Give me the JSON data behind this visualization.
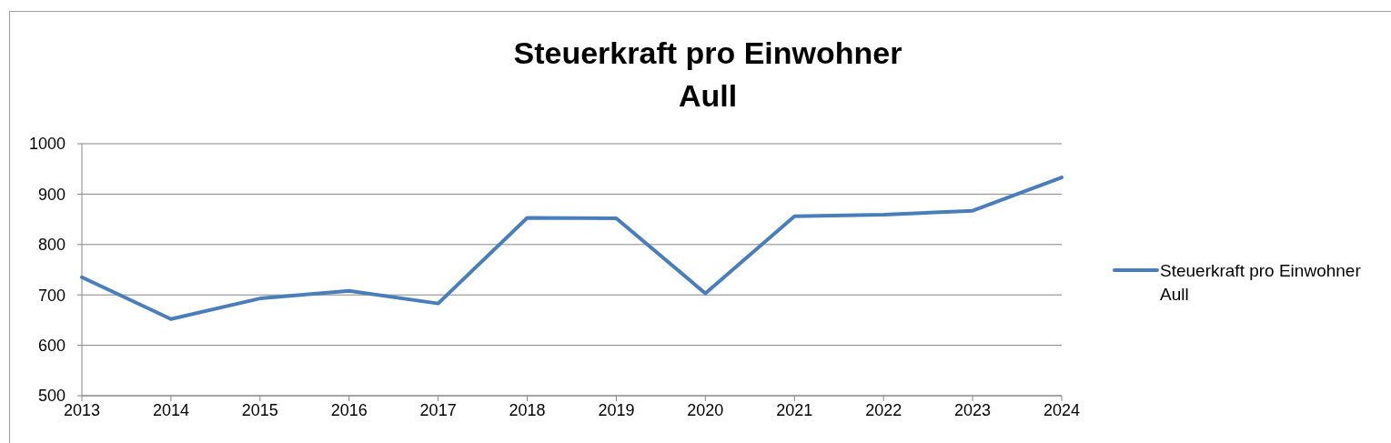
{
  "chart_data": {
    "type": "line",
    "title": "Steuerkraft pro Einwohner\nAull",
    "categories": [
      "2013",
      "2014",
      "2015",
      "2016",
      "2017",
      "2018",
      "2019",
      "2020",
      "2021",
      "2022",
      "2023",
      "2024"
    ],
    "series": [
      {
        "name": "Steuerkraft pro Einwohner Aull",
        "color": "#4a7ebb",
        "values": [
          735,
          652,
          693,
          708,
          683,
          853,
          852,
          703,
          856,
          859,
          867,
          933
        ]
      }
    ],
    "ylim": [
      500,
      1000
    ],
    "yticks": [
      500,
      600,
      700,
      800,
      900,
      1000
    ],
    "grid": "y",
    "legend": "right",
    "marker": "none",
    "line_style": "solid"
  }
}
